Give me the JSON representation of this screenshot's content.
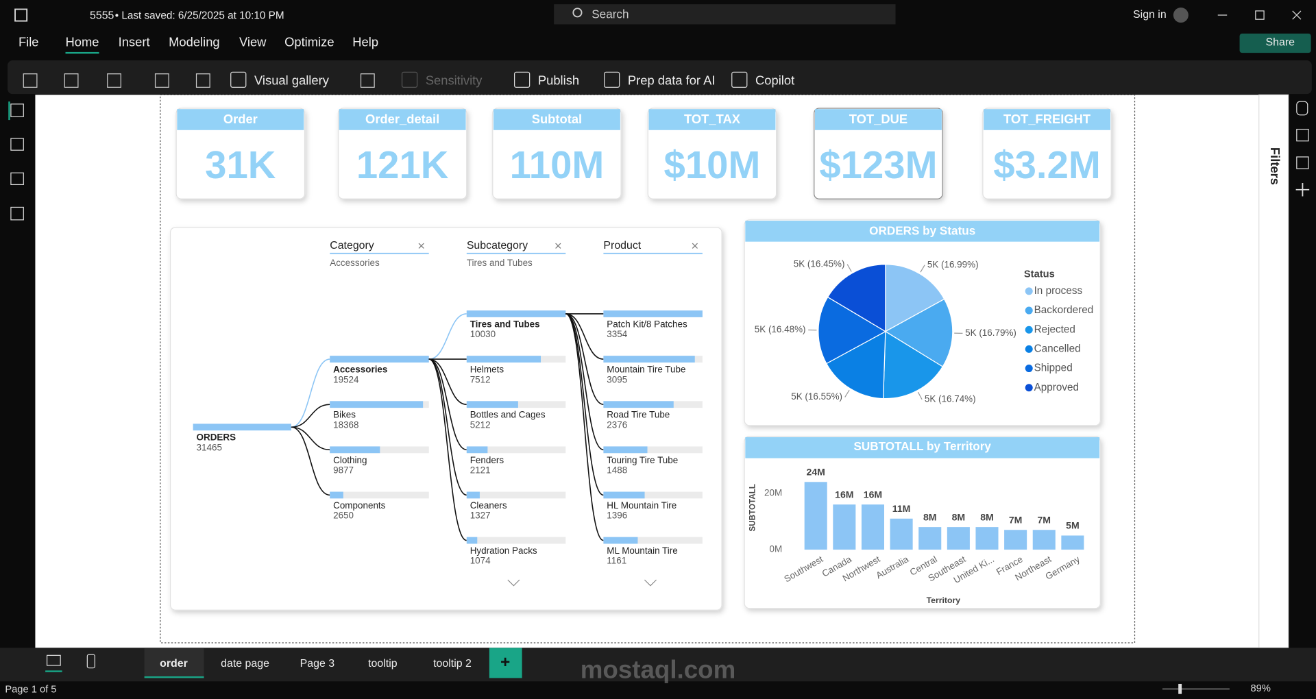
{
  "titlebar": {
    "file": "5555",
    "saved": "• Last saved: 6/25/2025 at 10:10 PM",
    "search": "Search",
    "sign_in": "Sign in"
  },
  "menu": {
    "items": [
      "File",
      "Home",
      "Insert",
      "Modeling",
      "View",
      "Optimize",
      "Help"
    ],
    "share": "Share"
  },
  "toolbar": {
    "items": [
      "Visual gallery",
      "Sensitivity",
      "Publish",
      "Prep data for AI",
      "Copilot"
    ]
  },
  "side_panel": {
    "filters": "Filters"
  },
  "cards": [
    {
      "title": "Order",
      "value": "31K"
    },
    {
      "title": "Order_detail",
      "value": "121K"
    },
    {
      "title": "Subtotal",
      "value": "110M"
    },
    {
      "title": "TOT_TAX",
      "value": "$10M"
    },
    {
      "title": "TOT_DUE",
      "value": "$123M"
    },
    {
      "title": "TOT_FREIGHT",
      "value": "$3.2M"
    }
  ],
  "decomposition_tree": {
    "levels": [
      {
        "title": "Category",
        "selection": "Accessories"
      },
      {
        "title": "Subcategory",
        "selection": "Tires and Tubes"
      },
      {
        "title": "Product"
      }
    ],
    "root": {
      "label": "ORDERS",
      "value": 31465
    },
    "nodes": [
      [
        {
          "label": "Accessories",
          "value": 19524
        },
        {
          "label": "Bikes",
          "value": 18368
        },
        {
          "label": "Clothing",
          "value": 9877
        },
        {
          "label": "Components",
          "value": 2650
        }
      ],
      [
        {
          "label": "Tires and Tubes",
          "value": 10030
        },
        {
          "label": "Helmets",
          "value": 7512
        },
        {
          "label": "Bottles and Cages",
          "value": 5212
        },
        {
          "label": "Fenders",
          "value": 2121
        },
        {
          "label": "Cleaners",
          "value": 1327
        },
        {
          "label": "Hydration Packs",
          "value": 1074
        }
      ],
      [
        {
          "label": "Patch Kit/8 Patches",
          "value": 3354
        },
        {
          "label": "Mountain Tire Tube",
          "value": 3095
        },
        {
          "label": "Road Tire Tube",
          "value": 2376
        },
        {
          "label": "Touring Tire Tube",
          "value": 1488
        },
        {
          "label": "HL Mountain Tire",
          "value": 1396
        },
        {
          "label": "ML Mountain Tire",
          "value": 1161
        }
      ]
    ]
  },
  "chart_data": [
    {
      "type": "pie",
      "title": "ORDERS by Status",
      "legend_title": "Status",
      "legend": "right",
      "categories": [
        "In process",
        "Backordered",
        "Rejected",
        "Cancelled",
        "Shipped",
        "Approved"
      ],
      "values": [
        16.99,
        16.79,
        16.74,
        16.55,
        16.48,
        16.45
      ],
      "value_labels": [
        "5K (16.99%)",
        "5K (16.79%)",
        "5K (16.74%)",
        "5K (16.55%)",
        "5K (16.48%)",
        "5K (16.45%)"
      ],
      "colors": [
        "#8cc5f5",
        "#4aaaf0",
        "#1996ea",
        "#0a80e4",
        "#0a6be0",
        "#0a4fd6"
      ]
    },
    {
      "type": "bar",
      "title": "SUBTOTALL by Territory",
      "x_label": "Territory",
      "y_label": "SUBTOTALL",
      "categories": [
        "Southwest",
        "Canada",
        "Northwest",
        "Australia",
        "Central",
        "Southeast",
        "United Ki...",
        "France",
        "Northeast",
        "Germany"
      ],
      "values": [
        24,
        16,
        16,
        11,
        8,
        8,
        8,
        7,
        7,
        5
      ],
      "value_labels": [
        "24M",
        "16M",
        "16M",
        "11M",
        "8M",
        "8M",
        "8M",
        "7M",
        "7M",
        "5M"
      ],
      "color": "#8cc5f5",
      "ylim": [
        0,
        25
      ],
      "yticks": [
        {
          "value": 0,
          "label": "0M"
        },
        {
          "value": 20,
          "label": "20M"
        }
      ],
      "grid": false
    }
  ],
  "tabs": [
    "order",
    "date page",
    "Page 3",
    "tooltip",
    "tooltip 2"
  ],
  "status": {
    "page": "Page 1 of 5",
    "zoom": "89%"
  },
  "watermark": "mostaql.com"
}
